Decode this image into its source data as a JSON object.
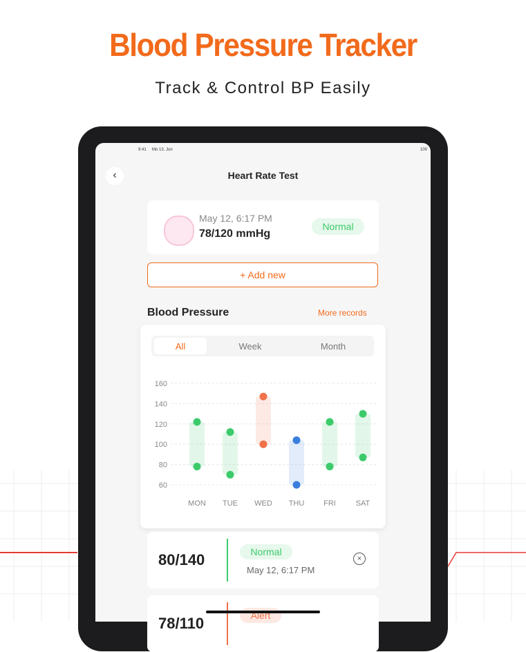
{
  "header": {
    "title": "Blood Pressure Tracker",
    "subtitle": "Track & Control BP Easily"
  },
  "status_bar": {
    "time": "9:41",
    "date": "Mo 13. Jun",
    "battery": "100"
  },
  "nav": {
    "title": "Heart Rate Test"
  },
  "latest": {
    "date": "May 12, 6:17 PM",
    "reading": "78/120 mmHg",
    "status": "Normal"
  },
  "add_button": "+ Add new",
  "section": {
    "title": "Blood Pressure",
    "link": "More records"
  },
  "tabs": [
    "All",
    "Week",
    "Month"
  ],
  "chart_data": {
    "type": "range",
    "categories": [
      "MON",
      "TUE",
      "WED",
      "THU",
      "FRI",
      "SAT"
    ],
    "low": [
      78,
      70,
      100,
      60,
      78,
      87
    ],
    "high": [
      122,
      112,
      147,
      104,
      122,
      130
    ],
    "colors": [
      "#3ccb6b",
      "#3ccb6b",
      "#f0714a",
      "#3b7ddd",
      "#3ccb6b",
      "#3ccb6b"
    ],
    "ylim": [
      60,
      160
    ],
    "yticks": [
      60,
      80,
      100,
      120,
      140,
      160
    ],
    "grid": true
  },
  "records": [
    {
      "reading": "80/140",
      "status": "Normal",
      "date": "May 12, 6:17 PM"
    },
    {
      "reading": "78/110",
      "status": "Alert"
    }
  ]
}
